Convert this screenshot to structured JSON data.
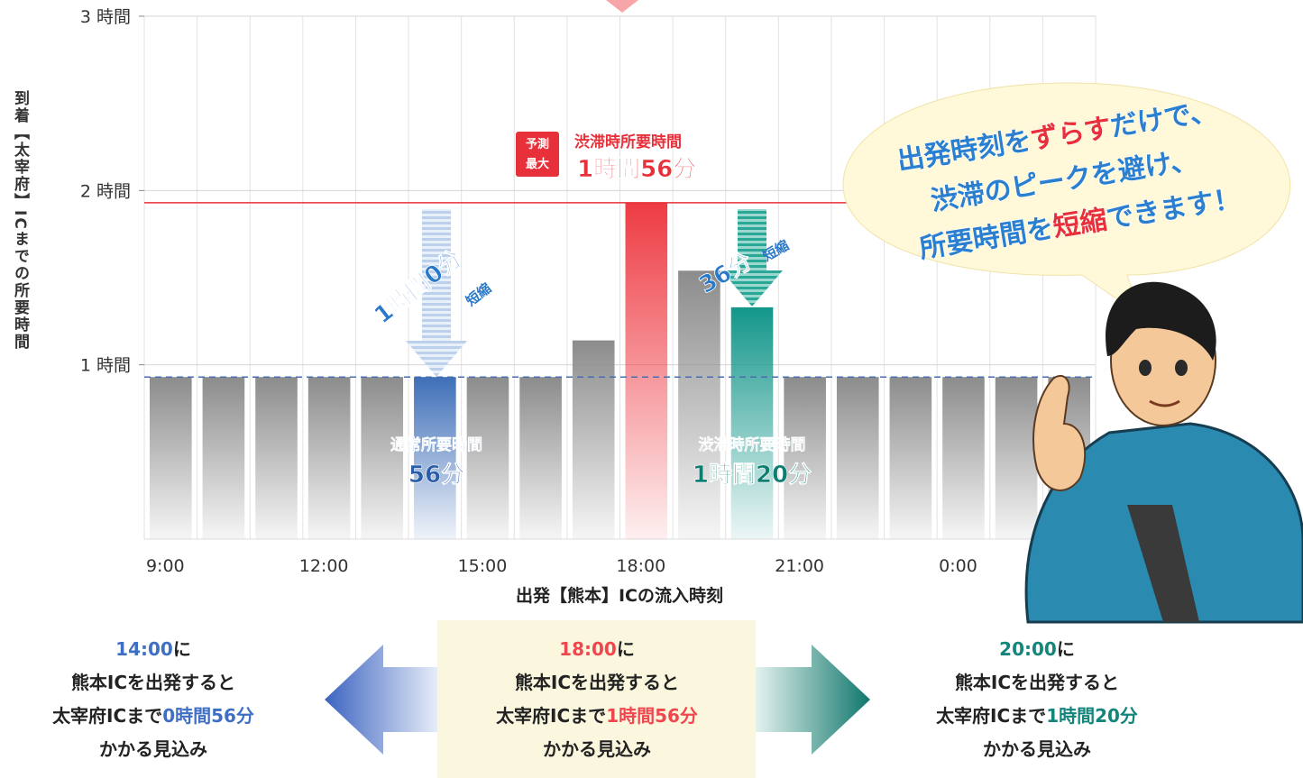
{
  "chart_data": {
    "type": "bar",
    "y_label": "到着【太宰府】ICまでの所要時間",
    "x_label": "出発【熊本】ICの流入時刻",
    "categories": [
      "9:00",
      null,
      null,
      "12:00",
      null,
      null,
      "15:00",
      null,
      null,
      "18:00",
      null,
      null,
      "21:00",
      null,
      null,
      "0:00",
      null,
      null
    ],
    "values": [
      0.93,
      0.93,
      0.93,
      0.93,
      0.93,
      0.93,
      0.93,
      0.93,
      1.14,
      1.93,
      1.54,
      1.33,
      0.93,
      0.93,
      0.93,
      0.93,
      0.93,
      0.93
    ],
    "colors": [
      "#8c8c8c",
      "#8c8c8c",
      "#8c8c8c",
      "#8c8c8c",
      "#8c8c8c",
      "#3f6fb8",
      "#8c8c8c",
      "#8c8c8c",
      "#8c8c8c",
      "#ee3b43",
      "#8c8c8c",
      "#13968a",
      "#8c8c8c",
      "#8c8c8c",
      "#8c8c8c",
      "#8c8c8c",
      "#8c8c8c",
      "#8c8c8c"
    ],
    "ylim": [
      0,
      3
    ],
    "yticks": [
      {
        "value": 1,
        "label": "1 時間"
      },
      {
        "value": 2,
        "label": "2 時間"
      },
      {
        "value": 3,
        "label": "3 時間"
      }
    ],
    "grid": true,
    "reference_lines": [
      {
        "value": 1.93,
        "color": "#e8303a",
        "dashed": false
      },
      {
        "value": 0.93,
        "color": "#4a6ea8",
        "dashed": true
      }
    ],
    "annotations": {
      "badge_top": "予測",
      "badge_bottom": "最大",
      "peak_label": "渋滞時所要時間",
      "peak_value": "1時間56分",
      "normal_label": "通常所要時間",
      "normal_value": "56分",
      "jam_label": "渋滞時所要時間",
      "jam_value": "1時間20分",
      "saving_a": "1時間0分",
      "saving_a_unit": "短縮",
      "saving_b": "36分",
      "saving_b_unit": "短縮"
    },
    "bubble": {
      "line1_a": "出発時刻を",
      "line1_b": "ずらす",
      "line1_c": "だけで、",
      "line2": "渋滞のピークを避け、",
      "line3_a": "所要時間を",
      "line3_b": "短縮",
      "line3_c": "できます！"
    },
    "panels": [
      {
        "time": "14:00",
        "suffix": "に",
        "line2": "熊本ICを出発すると",
        "line3": "太宰府ICまで",
        "duration": "0時間56分",
        "line4": "かかる見込み",
        "color": "#3f6fc4"
      },
      {
        "time": "18:00",
        "suffix": "に",
        "line2": "熊本ICを出発すると",
        "line3": "太宰府ICまで",
        "duration": "1時間56分",
        "line4": "かかる見込み",
        "color": "#f0474f"
      },
      {
        "time": "20:00",
        "suffix": "に",
        "line2": "熊本ICを出発すると",
        "line3": "太宰府ICまで",
        "duration": "1時間20分",
        "line4": "かかる見込み",
        "color": "#13857a"
      }
    ]
  }
}
